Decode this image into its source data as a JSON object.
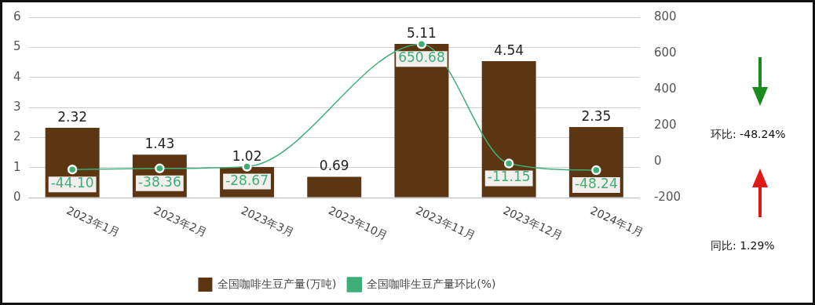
{
  "chart_data": {
    "type": "bar",
    "categories": [
      "2023年1月",
      "2023年2月",
      "2023年3月",
      "2023年10月",
      "2023年11月",
      "2023年12月",
      "2024年1月"
    ],
    "series": [
      {
        "name": "全国咖啡生豆产量(万吨)",
        "color": "#5c3512",
        "values": [
          2.32,
          1.43,
          1.02,
          0.69,
          5.11,
          4.54,
          2.35
        ],
        "value_labels": [
          "2.32",
          "1.43",
          "1.02",
          "0.69",
          "5.11",
          "4.54",
          "2.35"
        ]
      },
      {
        "name": "全国咖啡生豆产量环比(%)",
        "type": "line",
        "axis": "y2",
        "color": "#3dae76",
        "values": [
          -44.1,
          -38.36,
          -28.67,
          null,
          650.68,
          -11.15,
          -48.24
        ],
        "value_labels": [
          "-44.10",
          "-38.36",
          "-28.67",
          null,
          "650.68",
          "-11.15",
          "-48.24"
        ]
      }
    ],
    "ylim": [
      0,
      6
    ],
    "yticks": [
      0,
      1,
      2,
      3,
      4,
      5,
      6
    ],
    "y2lim": [
      -200,
      800
    ],
    "y2ticks": [
      -200,
      0,
      200,
      400,
      600,
      800
    ],
    "grid": "y",
    "legend": "bottom",
    "marker": "circle",
    "annotations": [
      "环比: -48.24%",
      "同比: 1.29%"
    ]
  }
}
